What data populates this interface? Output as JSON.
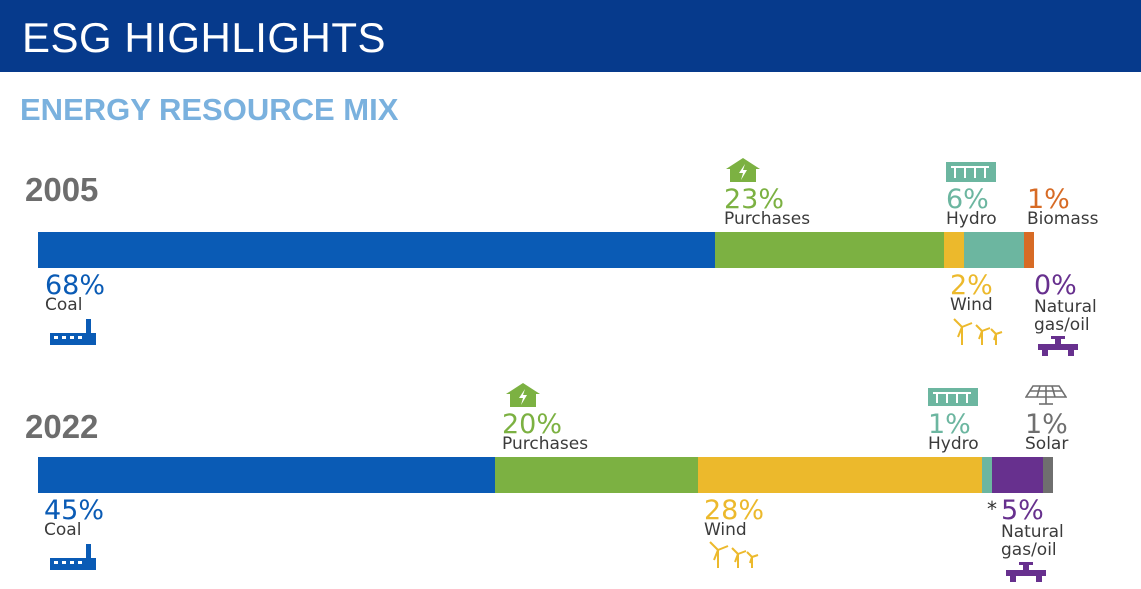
{
  "header": {
    "title": "ESG HIGHLIGHTS"
  },
  "subtitle": "ENERGY RESOURCE MIX",
  "colors": {
    "header_bg": "#063a8c",
    "coal": "#0a5bb5",
    "purchases": "#7cb142",
    "wind": "#ecb92c",
    "hydro": "#6cb6a0",
    "biomass": "#d76b25",
    "natural_gas_oil": "#67308e",
    "solar": "#6f6f6f"
  },
  "chart_data": [
    {
      "type": "bar",
      "title": "2005",
      "categories": [
        "Coal",
        "Purchases",
        "Wind",
        "Hydro",
        "Biomass",
        "Natural gas/oil"
      ],
      "values": [
        68,
        23,
        2,
        6,
        1,
        0
      ],
      "labels": [
        {
          "pct": "68%",
          "name": "Coal"
        },
        {
          "pct": "23%",
          "name": "Purchases"
        },
        {
          "pct": "2%",
          "name": "Wind"
        },
        {
          "pct": "6%",
          "name": "Hydro"
        },
        {
          "pct": "1%",
          "name": "Biomass"
        },
        {
          "pct": "0%",
          "name_line1": "Natural",
          "name_line2": "gas/oil"
        }
      ]
    },
    {
      "type": "bar",
      "title": "2022",
      "categories": [
        "Coal",
        "Purchases",
        "Wind",
        "Hydro",
        "Natural gas/oil",
        "Solar"
      ],
      "values": [
        45,
        20,
        28,
        1,
        5,
        1
      ],
      "labels": [
        {
          "pct": "45%",
          "name": "Coal"
        },
        {
          "pct": "20%",
          "name": "Purchases"
        },
        {
          "pct": "28%",
          "name": "Wind"
        },
        {
          "pct": "1%",
          "name": "Hydro"
        },
        {
          "pct": "5%",
          "name_line1": "Natural",
          "name_line2": "gas/oil",
          "marker": "*"
        },
        {
          "pct": "1%",
          "name": "Solar"
        }
      ]
    }
  ]
}
